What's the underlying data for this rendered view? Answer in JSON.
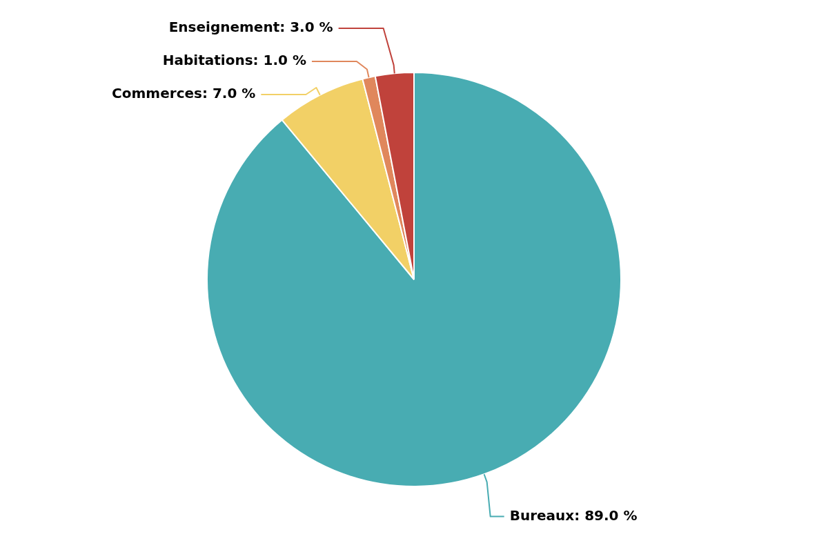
{
  "chart_data": {
    "type": "pie",
    "categories": [
      "Bureaux",
      "Commerces",
      "Habitations",
      "Enseignement"
    ],
    "values": [
      89,
      7,
      1,
      3
    ],
    "colors": [
      "#48acb2",
      "#f2d066",
      "#e0875c",
      "#c0423b"
    ],
    "value_labels": [
      "89.0 %",
      "7.0 %",
      "1.0 %",
      "3.0 %"
    ],
    "legend": false
  }
}
